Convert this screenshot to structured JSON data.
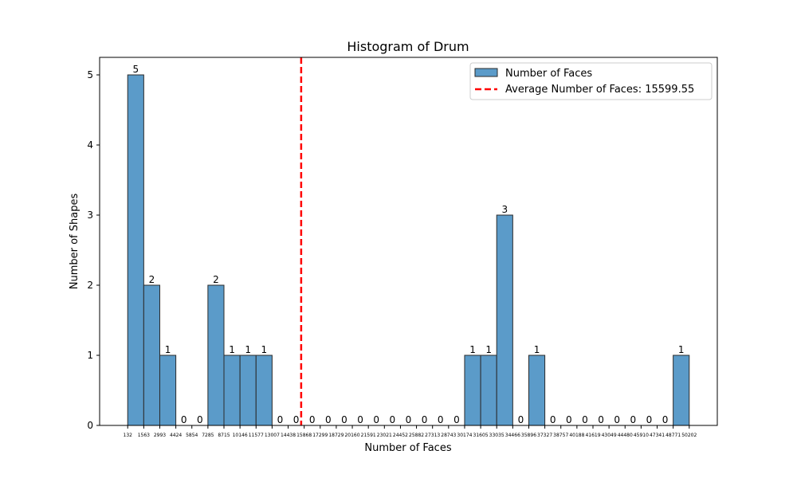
{
  "chart_data": {
    "type": "bar",
    "title": "Histogram of Drum",
    "xlabel": "Number of Faces",
    "ylabel": "Number of Shapes",
    "ylim": [
      0,
      5.25
    ],
    "yticks": [
      0,
      1,
      2,
      3,
      4,
      5
    ],
    "bin_edges": [
      132,
      1563,
      2993,
      4424,
      5854,
      7285,
      8715,
      10146,
      11577,
      13007,
      14438,
      15868,
      17299,
      18729,
      20160,
      21591,
      23021,
      24452,
      25882,
      27313,
      28743,
      30174,
      31605,
      33035,
      34466,
      35896,
      37327,
      38757,
      40188,
      41619,
      43049,
      44480,
      45910,
      47341,
      48771,
      50202
    ],
    "values": [
      5,
      2,
      1,
      0,
      0,
      2,
      1,
      1,
      1,
      0,
      0,
      0,
      0,
      0,
      0,
      0,
      0,
      0,
      0,
      0,
      0,
      1,
      1,
      3,
      0,
      1,
      0,
      0,
      0,
      0,
      0,
      0,
      0,
      0,
      1
    ],
    "bar_color": "#5b9bc9",
    "bar_edge_color": "#2b2b2b",
    "average_line": {
      "value": 15599.55,
      "label": "Average Number of Faces: 15599.55",
      "color": "#ff0000",
      "style": "dashed"
    },
    "legend": {
      "placement": "top-right",
      "entries": [
        "Number of Faces",
        "Average Number of Faces: 15599.55"
      ]
    },
    "grid": false
  }
}
